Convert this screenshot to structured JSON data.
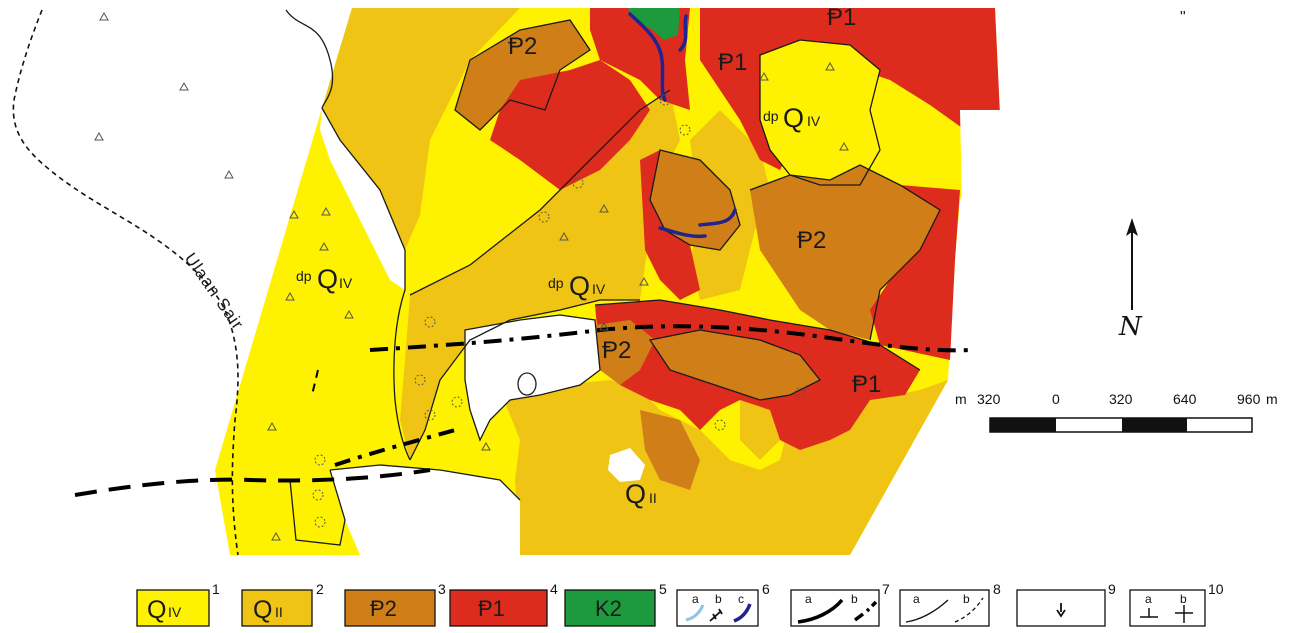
{
  "colors": {
    "Q_IV": "#fff200",
    "Q_II": "#f0c414",
    "P2": "#d07e18",
    "P1": "#dd2c1d",
    "K2": "#1e9a3e",
    "gully_light": "#8ec4e8",
    "gully_dark": "#21248f"
  },
  "map_labels": {
    "qiv_west": {
      "prefix": "dp",
      "letter": "Q",
      "sub": "IV"
    },
    "qiv_center": {
      "prefix": "dp",
      "letter": "Q",
      "sub": "IV"
    },
    "qiv_north": {
      "prefix": "dp",
      "letter": "Q",
      "sub": "IV"
    },
    "qii_south": {
      "letter": "Q",
      "sub": "II"
    },
    "p2_nw": "Ᵽ2",
    "p2_center": "Ᵽ2",
    "p2_east": "Ᵽ2",
    "p1_north": "Ᵽ1",
    "p1_top": "Ᵽ1",
    "p1_south": "Ᵽ1",
    "river": "Ulaan Sair",
    "tick_mark": "\""
  },
  "north_arrow": {
    "label": "N",
    "icon": "north-arrow-icon"
  },
  "scale_bar": {
    "unit_left": "m",
    "unit_right": "m",
    "ticks": [
      "320",
      "0",
      "320",
      "640",
      "960"
    ]
  },
  "legend": [
    {
      "num": "1",
      "letter": "Q",
      "sub": "IV",
      "color_key": "Q_IV"
    },
    {
      "num": "2",
      "letter": "Q",
      "sub": "II",
      "color_key": "Q_II"
    },
    {
      "num": "3",
      "text": "Ᵽ2",
      "color_key": "P2"
    },
    {
      "num": "4",
      "text": "Ᵽ1",
      "color_key": "P1"
    },
    {
      "num": "5",
      "text": "K2",
      "color_key": "K2"
    },
    {
      "num": "6",
      "letters": [
        "a",
        "b",
        "c"
      ]
    },
    {
      "num": "7",
      "letters": [
        "a",
        "b"
      ]
    },
    {
      "num": "8",
      "letters": [
        "a",
        "b"
      ]
    },
    {
      "num": "9"
    },
    {
      "num": "10",
      "letters": [
        "a",
        "b"
      ]
    }
  ]
}
